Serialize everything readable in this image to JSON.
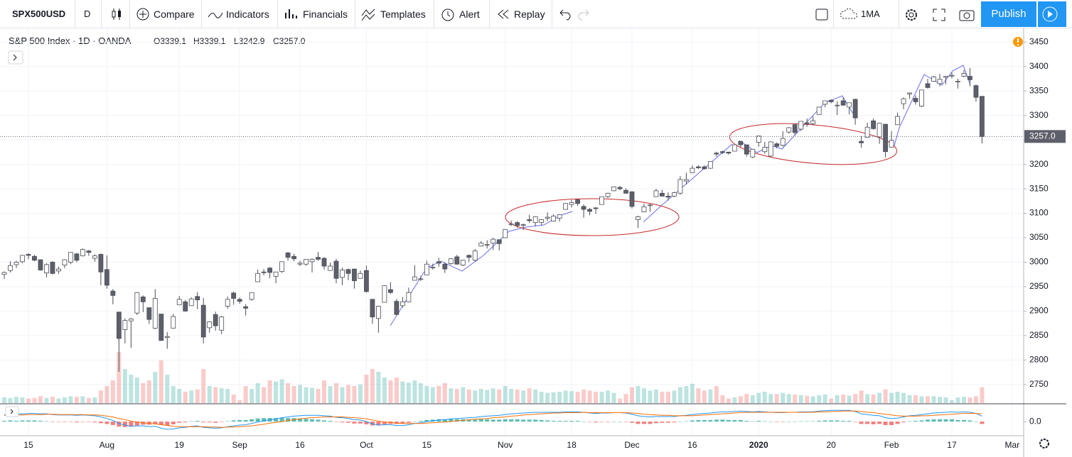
{
  "toolbar": {
    "symbol": "SPX500USD",
    "interval": "D",
    "buttons": [
      "Compare",
      "Indicators",
      "Financials",
      "Templates",
      "Alert",
      "Replay"
    ],
    "ma": "1MA",
    "publish": "Publish"
  },
  "legend": {
    "title": "S&P 500 Index · 1D · OANDA",
    "values": [
      "O3339.1",
      "H3339.1",
      "L3242.9",
      "C3257.0"
    ]
  },
  "chart_data": {
    "type": "candlestick",
    "xlim": [
      -0.71,
      168.9
    ],
    "xticks": [
      {
        "value": 4,
        "label": "15"
      },
      {
        "value": 17,
        "label": "Aug"
      },
      {
        "value": 29,
        "label": "19"
      },
      {
        "value": 39,
        "label": "Sep"
      },
      {
        "value": 49,
        "label": "16"
      },
      {
        "value": 60,
        "label": "Oct"
      },
      {
        "value": 70,
        "label": "15"
      },
      {
        "value": 83,
        "label": "Nov"
      },
      {
        "value": 94,
        "label": "18"
      },
      {
        "value": 104,
        "label": "Dec"
      },
      {
        "value": 114,
        "label": "16"
      },
      {
        "value": 125,
        "label": "2020"
      },
      {
        "value": 137,
        "label": "20"
      },
      {
        "value": 147,
        "label": "Feb"
      },
      {
        "value": 157,
        "label": "17"
      },
      {
        "value": 167,
        "label": "Mar"
      }
    ],
    "ylim": [
      2712,
      3478
    ],
    "yticks": [
      2750,
      2800,
      2850,
      2900,
      2950,
      3000,
      3050,
      3100,
      3150,
      3200,
      3250,
      3300,
      3350,
      3400,
      3450
    ],
    "grid": true,
    "up_color": "#ffffff",
    "down_color": "#5d606b",
    "border_color": "#4a4d57",
    "volume_up_color": "#26a69a",
    "volume_down_color": "#ef5350",
    "last_label": "3257.0",
    "open": [
      2975,
      2983,
      2995,
      3001,
      3016,
      3012,
      3005,
      2978,
      3000,
      2982,
      2994,
      3000,
      3017,
      3013,
      3023,
      3008,
      3016,
      2985,
      2941,
      2898,
      2862,
      2880,
      2896,
      2929,
      2907,
      2865,
      2894,
      2846,
      2865,
      2913,
      2919,
      2911,
      2930,
      2912,
      2866,
      2893,
      2861,
      2910,
      2937,
      2924,
      2909,
      2924,
      2960,
      2980,
      2988,
      2971,
      2981,
      3019,
      3012,
      2996,
      2996,
      3001,
      3010,
      3008,
      2983,
      3002,
      2969,
      2985,
      2986,
      2967,
      2983,
      2924,
      2885,
      2918,
      2944,
      2920,
      2911,
      2919,
      2963,
      2965,
      2974,
      2989,
      3001,
      2996,
      2997,
      3011,
      2994,
      3014,
      3004,
      3033,
      3036,
      3039,
      3046,
      3050,
      3078,
      3081,
      3076,
      3087,
      3081,
      3081,
      3090,
      3084,
      3090,
      3108,
      3118,
      3128,
      3114,
      3108,
      3111,
      3118,
      3134,
      3146,
      3153,
      3147,
      3144,
      3087,
      3103,
      3117,
      3134,
      3141,
      3135,
      3135,
      3141,
      3166,
      3183,
      3195,
      3195,
      3192,
      3223,
      3226,
      3225,
      3227,
      3247,
      3240,
      3215,
      3245,
      3226,
      3217,
      3242,
      3239,
      3266,
      3281,
      3272,
      3285,
      3283,
      3302,
      3323,
      3331,
      3321,
      3330,
      3317,
      3333,
      3247,
      3255,
      3289,
      3256,
      3282,
      3235,
      3281,
      3324,
      3344,
      3335,
      3319,
      3365,
      3370,
      3365,
      3378,
      3382,
      3370,
      3380,
      3380,
      3361,
      3339.1
    ],
    "high": [
      2981,
      3002,
      3003,
      3015,
      3018,
      3015,
      3006,
      2998,
      3002,
      2991,
      3006,
      3020,
      3019,
      3028,
      3025,
      3016,
      3018,
      3014,
      2945,
      2898,
      2885,
      2886,
      2939,
      2932,
      2907,
      2945,
      2894,
      2857,
      2894,
      2931,
      2923,
      2928,
      2939,
      2927,
      2879,
      2899,
      2890,
      2930,
      2940,
      2928,
      2914,
      2938,
      2985,
      2986,
      2990,
      2980,
      3001,
      3021,
      3017,
      3003,
      3006,
      3008,
      3021,
      3010,
      2999,
      3007,
      2989,
      2987,
      2987,
      2983,
      2993,
      2925,
      2911,
      2953,
      2959,
      2925,
      2929,
      2948,
      2994,
      2972,
      3003,
      2997,
      3009,
      3000,
      3008,
      3015,
      3005,
      3016,
      3027,
      3043,
      3045,
      3050,
      3046,
      3067,
      3085,
      3084,
      3079,
      3097,
      3094,
      3088,
      3102,
      3098,
      3098,
      3121,
      3127,
      3128,
      3118,
      3111,
      3113,
      3134,
      3142,
      3155,
      3156,
      3151,
      3145,
      3095,
      3120,
      3119,
      3150,
      3148,
      3143,
      3144,
      3176,
      3183,
      3198,
      3198,
      3198,
      3206,
      3226,
      3228,
      3226,
      3240,
      3247,
      3240,
      3231,
      3258,
      3246,
      3247,
      3245,
      3268,
      3276,
      3283,
      3288,
      3294,
      3298,
      3317,
      3330,
      3333,
      3329,
      3337,
      3326,
      3334,
      3258,
      3285,
      3294,
      3285,
      3283,
      3268,
      3306,
      3337,
      3347,
      3341,
      3352,
      3375,
      3381,
      3385,
      3380,
      3388,
      3375,
      3393,
      3397,
      3363,
      3339.1
    ],
    "low": [
      2966,
      2979,
      2988,
      2998,
      3006,
      3002,
      2983,
      2969,
      2975,
      2976,
      2988,
      2996,
      3000,
      3012,
      3013,
      3001,
      2953,
      2946,
      2914,
      2776,
      2834,
      2825,
      2892,
      2898,
      2874,
      2863,
      2839,
      2823,
      2865,
      2913,
      2899,
      2911,
      2904,
      2834,
      2856,
      2860,
      2853,
      2905,
      2913,
      2915,
      2891,
      2921,
      2960,
      2973,
      2967,
      2957,
      2978,
      3003,
      3002,
      2992,
      2993,
      2979,
      3003,
      2985,
      2983,
      2957,
      2953,
      2963,
      2946,
      2967,
      2938,
      2874,
      2856,
      2918,
      2935,
      2892,
      2907,
      2918,
      2963,
      2962,
      2974,
      2985,
      2991,
      2978,
      2995,
      2995,
      2992,
      3000,
      3001,
      3032,
      3028,
      3025,
      3024,
      3050,
      3074,
      3070,
      3066,
      3080,
      3073,
      3075,
      3084,
      3083,
      3083,
      3108,
      3112,
      3115,
      3091,
      3096,
      3099,
      3118,
      3131,
      3145,
      3147,
      3140,
      3110,
      3070,
      3103,
      3103,
      3134,
      3135,
      3126,
      3133,
      3138,
      3159,
      3183,
      3191,
      3189,
      3191,
      3216,
      3221,
      3220,
      3227,
      3235,
      3216,
      3213,
      3236,
      3222,
      3215,
      3233,
      3236,
      3263,
      3260,
      3268,
      3277,
      3280,
      3302,
      3317,
      3325,
      3301,
      3320,
      3302,
      3281,
      3234,
      3255,
      3271,
      3242,
      3214,
      3235,
      3281,
      3313,
      3334,
      3322,
      3317,
      3355,
      3369,
      3360,
      3364,
      3376,
      3355,
      3378,
      3360,
      3328,
      3242.9
    ],
    "close": [
      2979,
      2993,
      3000,
      3014,
      3014,
      3004,
      2984,
      2995,
      2977,
      2986,
      3005,
      3020,
      3004,
      3026,
      3020,
      3013,
      2980,
      2953,
      2932,
      2844,
      2881,
      2884,
      2938,
      2919,
      2883,
      2926,
      2840,
      2848,
      2889,
      2924,
      2900,
      2925,
      2923,
      2847,
      2878,
      2870,
      2888,
      2924,
      2926,
      2920,
      2906,
      2938,
      2977,
      2979,
      2979,
      2980,
      3001,
      3010,
      3007,
      2998,
      3006,
      3006,
      3006,
      2992,
      2992,
      2967,
      2984,
      2977,
      2962,
      2977,
      2940,
      2888,
      2910,
      2952,
      2938,
      2893,
      2919,
      2938,
      2970,
      2966,
      2996,
      2990,
      2998,
      2986,
      3007,
      2996,
      3004,
      3010,
      3023,
      3039,
      3036,
      3047,
      3038,
      3067,
      3078,
      3075,
      3077,
      3085,
      3093,
      3087,
      3092,
      3094,
      3097,
      3120,
      3122,
      3120,
      3108,
      3104,
      3110,
      3134,
      3141,
      3154,
      3150,
      3141,
      3114,
      3093,
      3113,
      3117,
      3146,
      3135,
      3133,
      3142,
      3169,
      3169,
      3192,
      3193,
      3191,
      3206,
      3221,
      3224,
      3223,
      3240,
      3240,
      3221,
      3231,
      3258,
      3235,
      3246,
      3237,
      3253,
      3275,
      3265,
      3288,
      3283,
      3289,
      3317,
      3330,
      3328,
      3321,
      3321,
      3326,
      3295,
      3244,
      3276,
      3273,
      3284,
      3226,
      3249,
      3298,
      3334,
      3346,
      3328,
      3352,
      3357,
      3379,
      3374,
      3380,
      3382,
      3370,
      3386,
      3373,
      3337,
      3257
    ],
    "volume": [
      10,
      9,
      11,
      10,
      8,
      9,
      12,
      9,
      11,
      8,
      10,
      12,
      11,
      12,
      9,
      10,
      22,
      30,
      40,
      90,
      60,
      50,
      45,
      35,
      40,
      55,
      75,
      50,
      30,
      25,
      20,
      22,
      24,
      60,
      30,
      28,
      26,
      25,
      15,
      5,
      30,
      25,
      35,
      28,
      40,
      38,
      42,
      35,
      30,
      32,
      28,
      27,
      25,
      40,
      30,
      35,
      28,
      32,
      30,
      33,
      50,
      60,
      55,
      45,
      40,
      45,
      38,
      36,
      40,
      35,
      30,
      28,
      30,
      35,
      26,
      25,
      28,
      24,
      22,
      25,
      23,
      26,
      24,
      30,
      25,
      24,
      22,
      26,
      24,
      20,
      18,
      19,
      20,
      22,
      21,
      20,
      24,
      22,
      20,
      20,
      22,
      18,
      8,
      16,
      28,
      30,
      26,
      22,
      24,
      20,
      20,
      22,
      28,
      30,
      34,
      26,
      22,
      24,
      30,
      14,
      8,
      10,
      12,
      16,
      14,
      18,
      20,
      16,
      16,
      18,
      16,
      15,
      14,
      13,
      12,
      14,
      15,
      8,
      14,
      15,
      13,
      16,
      22,
      16,
      15,
      18,
      24,
      18,
      20,
      18,
      14,
      14,
      12,
      12,
      12,
      11,
      10,
      5,
      10,
      11,
      10,
      12,
      28
    ],
    "macd": {
      "ylim": [
        -40,
        44
      ],
      "yticks": [
        {
          "value": 0,
          "label": "0.0"
        }
      ],
      "macd_color": "#2196f3",
      "signal_color": "#ff6d00",
      "positive_color": "#26a69a",
      "negative_color": "#ef5350",
      "macd": [
        18,
        19,
        19,
        20,
        21,
        21,
        20,
        20,
        18,
        17,
        17,
        17,
        16,
        17,
        16,
        15,
        12,
        8,
        3,
        -5,
        -9,
        -12,
        -11,
        -11,
        -13,
        -12,
        -17,
        -20,
        -19,
        -16,
        -15,
        -12,
        -11,
        -15,
        -16,
        -17,
        -16,
        -13,
        -11,
        -9,
        -8,
        -5,
        -1,
        2,
        5,
        7,
        10,
        12,
        14,
        15,
        16,
        16,
        16,
        15,
        14,
        11,
        10,
        8,
        5,
        4,
        0,
        -6,
        -9,
        -8,
        -8,
        -10,
        -10,
        -8,
        -5,
        -3,
        0,
        2,
        4,
        5,
        7,
        8,
        9,
        10,
        11,
        13,
        14,
        15,
        16,
        18,
        20,
        21,
        22,
        23,
        24,
        24,
        24,
        24,
        24,
        25,
        25,
        25,
        24,
        22,
        21,
        22,
        22,
        23,
        23,
        22,
        19,
        15,
        13,
        12,
        13,
        13,
        13,
        13,
        15,
        16,
        18,
        20,
        21,
        22,
        24,
        25,
        25,
        26,
        27,
        26,
        25,
        26,
        25,
        24,
        23,
        23,
        24,
        24,
        25,
        25,
        25,
        27,
        28,
        29,
        29,
        29,
        29,
        26,
        20,
        18,
        16,
        15,
        10,
        8,
        9,
        12,
        15,
        16,
        18,
        20,
        22,
        23,
        24,
        25,
        24,
        25,
        24,
        21,
        14
      ],
      "signal": [
        16,
        16,
        17,
        17,
        18,
        18,
        18,
        19,
        19,
        18,
        18,
        18,
        18,
        18,
        17,
        17,
        16,
        14,
        12,
        8,
        5,
        1,
        -1,
        -3,
        -5,
        -6,
        -8,
        -10,
        -12,
        -13,
        -13,
        -13,
        -13,
        -13,
        -14,
        -14,
        -15,
        -14,
        -14,
        -13,
        -12,
        -11,
        -9,
        -7,
        -4,
        -2,
        0,
        3,
        5,
        7,
        9,
        10,
        11,
        12,
        12,
        12,
        12,
        11,
        10,
        9,
        7,
        4,
        1,
        -1,
        -2,
        -4,
        -5,
        -5,
        -5,
        -5,
        -4,
        -3,
        -2,
        -1,
        0,
        2,
        3,
        5,
        6,
        7,
        8,
        10,
        11,
        12,
        14,
        15,
        17,
        18,
        19,
        20,
        21,
        22,
        22,
        23,
        23,
        23,
        24,
        23,
        23,
        23,
        23,
        23,
        23,
        23,
        22,
        21,
        19,
        18,
        17,
        16,
        16,
        15,
        15,
        15,
        15,
        16,
        17,
        18,
        19,
        20,
        21,
        22,
        23,
        24,
        24,
        24,
        24,
        24,
        24,
        24,
        24,
        24,
        24,
        24,
        24,
        25,
        25,
        26,
        26,
        27,
        27,
        27,
        26,
        24,
        23,
        21,
        19,
        17,
        15,
        14,
        14,
        14,
        15,
        15,
        16,
        17,
        18,
        19,
        20,
        21,
        21,
        21,
        20
      ],
      "histogram": [
        2,
        3,
        2,
        3,
        3,
        3,
        2,
        1,
        -1,
        -1,
        -1,
        -1,
        -2,
        -1,
        -1,
        -2,
        -4,
        -6,
        -9,
        -13,
        -14,
        -13,
        -10,
        -8,
        -8,
        -6,
        -9,
        -10,
        -7,
        -3,
        -2,
        1,
        2,
        -2,
        -2,
        -3,
        -1,
        1,
        3,
        4,
        4,
        6,
        8,
        9,
        9,
        9,
        10,
        9,
        9,
        8,
        7,
        6,
        5,
        3,
        2,
        -1,
        -2,
        -3,
        -5,
        -5,
        -7,
        -10,
        -10,
        -7,
        -6,
        -6,
        -5,
        -3,
        0,
        2,
        4,
        5,
        6,
        6,
        7,
        6,
        6,
        5,
        5,
        6,
        6,
        5,
        5,
        6,
        6,
        6,
        5,
        5,
        5,
        4,
        3,
        2,
        2,
        2,
        2,
        2,
        0,
        -1,
        -2,
        -1,
        -1,
        0,
        0,
        -1,
        -3,
        -6,
        -6,
        -6,
        -4,
        -3,
        -3,
        -2,
        0,
        1,
        3,
        4,
        4,
        4,
        5,
        5,
        4,
        4,
        4,
        2,
        1,
        2,
        1,
        0,
        -1,
        -1,
        0,
        0,
        1,
        1,
        1,
        2,
        3,
        3,
        3,
        2,
        2,
        -1,
        -6,
        -6,
        -7,
        -6,
        -9,
        -9,
        -6,
        -2,
        1,
        2,
        3,
        5,
        6,
        6,
        6,
        6,
        4,
        4,
        3,
        0,
        -6
      ]
    }
  }
}
